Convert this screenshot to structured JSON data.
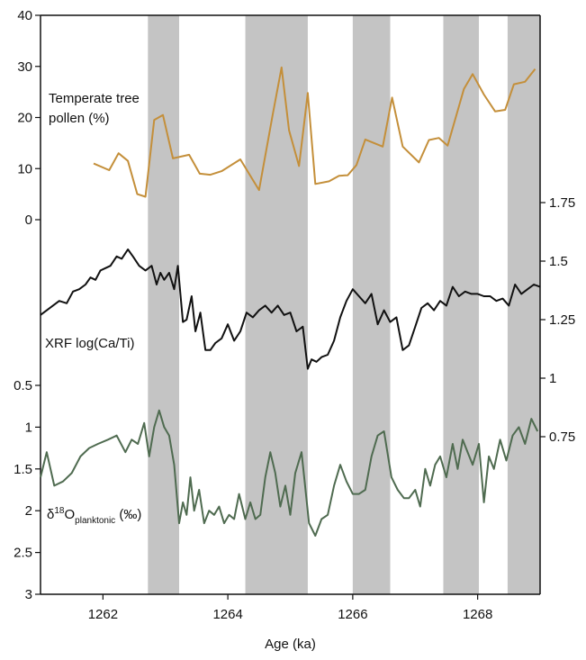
{
  "chart_data": {
    "type": "line",
    "x_axis": {
      "label": "Age (ka)",
      "range": [
        1261.0,
        1269.0
      ],
      "ticks": [
        1262,
        1264,
        1266,
        1268
      ],
      "tick_labels": [
        "1262",
        "1264",
        "1266",
        "1268"
      ]
    },
    "shaded_intervals": [
      [
        1262.72,
        1263.22
      ],
      [
        1264.28,
        1265.28
      ],
      [
        1266.0,
        1266.6
      ],
      [
        1267.45,
        1268.02
      ],
      [
        1268.48,
        1269.0
      ]
    ],
    "shade_color": "#c4c4c4",
    "series": [
      {
        "name": "Temperate tree pollen (%)",
        "label_lines": [
          "Temperate tree",
          "pollen (%)"
        ],
        "axis": "left-top",
        "axis_range": [
          0,
          40
        ],
        "ticks": [
          0,
          10,
          20,
          30,
          40
        ],
        "tick_labels": [
          "0",
          "10",
          "20",
          "30",
          "40"
        ],
        "color": "#c48f3a",
        "x": [
          1261.85,
          1262.1,
          1262.25,
          1262.4,
          1262.55,
          1262.68,
          1262.82,
          1262.96,
          1263.12,
          1263.38,
          1263.55,
          1263.72,
          1263.9,
          1264.2,
          1264.5,
          1264.72,
          1264.86,
          1264.98,
          1265.14,
          1265.28,
          1265.4,
          1265.62,
          1265.78,
          1265.92,
          1266.06,
          1266.2,
          1266.48,
          1266.63,
          1266.8,
          1267.06,
          1267.22,
          1267.38,
          1267.52,
          1267.78,
          1267.92,
          1268.1,
          1268.28,
          1268.44,
          1268.58,
          1268.76,
          1268.92
        ],
        "y": [
          11,
          9.7,
          13,
          11.5,
          5,
          4.5,
          19.5,
          20.5,
          12,
          12.7,
          9,
          8.8,
          9.5,
          11.8,
          5.8,
          20.7,
          29.8,
          17.5,
          10.5,
          24.8,
          7,
          7.5,
          8.6,
          8.7,
          10.7,
          15.7,
          14.3,
          23.9,
          14.3,
          11.2,
          15.6,
          16,
          14.5,
          25.6,
          28.5,
          24.5,
          21.2,
          21.5,
          26.5,
          27,
          29.5
        ]
      },
      {
        "name": "XRF log(Ca/Ti)",
        "label_lines": [
          "XRF log(Ca/Ti)"
        ],
        "axis": "right",
        "axis_range": [
          0.6,
          1.8
        ],
        "ticks": [
          0.75,
          1,
          1.25,
          1.5,
          1.75
        ],
        "tick_labels": [
          "0.75",
          "1",
          "1.25",
          "1.5",
          "1.75"
        ],
        "color": "#111111",
        "x": [
          1261.0,
          1261.3,
          1261.42,
          1261.52,
          1261.62,
          1261.72,
          1261.8,
          1261.88,
          1261.96,
          1262.04,
          1262.12,
          1262.22,
          1262.3,
          1262.4,
          1262.48,
          1262.58,
          1262.68,
          1262.78,
          1262.86,
          1262.92,
          1262.98,
          1263.06,
          1263.14,
          1263.2,
          1263.28,
          1263.34,
          1263.42,
          1263.48,
          1263.56,
          1263.64,
          1263.72,
          1263.8,
          1263.9,
          1264.0,
          1264.1,
          1264.2,
          1264.3,
          1264.4,
          1264.5,
          1264.6,
          1264.7,
          1264.8,
          1264.9,
          1265.0,
          1265.1,
          1265.2,
          1265.28,
          1265.34,
          1265.42,
          1265.5,
          1265.6,
          1265.7,
          1265.8,
          1265.9,
          1266.0,
          1266.1,
          1266.2,
          1266.3,
          1266.4,
          1266.5,
          1266.6,
          1266.7,
          1266.8,
          1266.9,
          1267.0,
          1267.1,
          1267.2,
          1267.3,
          1267.4,
          1267.5,
          1267.6,
          1267.7,
          1267.8,
          1267.9,
          1268.0,
          1268.1,
          1268.2,
          1268.3,
          1268.4,
          1268.5,
          1268.6,
          1268.7,
          1268.8,
          1268.9,
          1269.0
        ],
        "y": [
          1.27,
          1.33,
          1.32,
          1.37,
          1.38,
          1.4,
          1.43,
          1.42,
          1.46,
          1.47,
          1.48,
          1.52,
          1.51,
          1.55,
          1.52,
          1.48,
          1.46,
          1.48,
          1.4,
          1.45,
          1.42,
          1.45,
          1.38,
          1.48,
          1.24,
          1.25,
          1.35,
          1.2,
          1.28,
          1.12,
          1.12,
          1.15,
          1.17,
          1.23,
          1.16,
          1.2,
          1.28,
          1.26,
          1.29,
          1.31,
          1.28,
          1.31,
          1.27,
          1.28,
          1.2,
          1.22,
          1.04,
          1.08,
          1.07,
          1.09,
          1.1,
          1.16,
          1.26,
          1.33,
          1.38,
          1.35,
          1.32,
          1.36,
          1.23,
          1.29,
          1.24,
          1.26,
          1.12,
          1.14,
          1.22,
          1.3,
          1.32,
          1.29,
          1.33,
          1.31,
          1.39,
          1.35,
          1.37,
          1.36,
          1.36,
          1.35,
          1.35,
          1.33,
          1.34,
          1.31,
          1.4,
          1.36,
          1.38,
          1.4,
          1.39
        ]
      },
      {
        "name": "δ18O planktonic (‰)",
        "label_parts": [
          "δ",
          "18",
          "O",
          "planktonic",
          " (‰)"
        ],
        "axis": "left-bottom",
        "axis_range": [
          0.5,
          3
        ],
        "ticks": [
          0.5,
          1,
          1.5,
          2,
          2.5,
          3
        ],
        "tick_labels": [
          "0.5",
          "1",
          "1.5",
          "2",
          "2.5",
          "3"
        ],
        "inverted": true,
        "color": "#4f6b50",
        "x": [
          1261.0,
          1261.1,
          1261.22,
          1261.36,
          1261.5,
          1261.64,
          1261.78,
          1261.92,
          1262.08,
          1262.22,
          1262.36,
          1262.46,
          1262.56,
          1262.66,
          1262.74,
          1262.82,
          1262.9,
          1262.98,
          1263.06,
          1263.14,
          1263.22,
          1263.28,
          1263.34,
          1263.4,
          1263.46,
          1263.54,
          1263.62,
          1263.7,
          1263.78,
          1263.86,
          1263.94,
          1264.02,
          1264.1,
          1264.18,
          1264.28,
          1264.36,
          1264.44,
          1264.52,
          1264.6,
          1264.68,
          1264.76,
          1264.84,
          1264.92,
          1265.0,
          1265.08,
          1265.18,
          1265.3,
          1265.4,
          1265.5,
          1265.6,
          1265.7,
          1265.8,
          1265.9,
          1266.0,
          1266.1,
          1266.2,
          1266.3,
          1266.4,
          1266.5,
          1266.62,
          1266.72,
          1266.82,
          1266.9,
          1267.0,
          1267.08,
          1267.16,
          1267.24,
          1267.32,
          1267.4,
          1267.5,
          1267.6,
          1267.68,
          1267.76,
          1267.84,
          1267.92,
          1268.02,
          1268.1,
          1268.18,
          1268.26,
          1268.36,
          1268.46,
          1268.56,
          1268.66,
          1268.76,
          1268.86,
          1268.96
        ],
        "y": [
          1.6,
          1.3,
          1.7,
          1.65,
          1.55,
          1.35,
          1.25,
          1.2,
          1.15,
          1.1,
          1.3,
          1.15,
          1.2,
          0.95,
          1.35,
          1.0,
          0.8,
          1.0,
          1.1,
          1.45,
          2.15,
          1.9,
          2.05,
          1.6,
          2.0,
          1.75,
          2.15,
          2.0,
          2.05,
          1.95,
          2.15,
          2.05,
          2.1,
          1.8,
          2.1,
          1.9,
          2.1,
          2.05,
          1.6,
          1.3,
          1.55,
          1.95,
          1.7,
          2.05,
          1.55,
          1.3,
          2.15,
          2.3,
          2.1,
          2.05,
          1.7,
          1.45,
          1.65,
          1.8,
          1.8,
          1.75,
          1.35,
          1.1,
          1.05,
          1.6,
          1.75,
          1.85,
          1.85,
          1.75,
          1.95,
          1.5,
          1.7,
          1.45,
          1.35,
          1.6,
          1.2,
          1.5,
          1.15,
          1.3,
          1.45,
          1.2,
          1.9,
          1.35,
          1.5,
          1.15,
          1.4,
          1.1,
          1.0,
          1.2,
          0.9,
          1.05
        ]
      }
    ]
  }
}
